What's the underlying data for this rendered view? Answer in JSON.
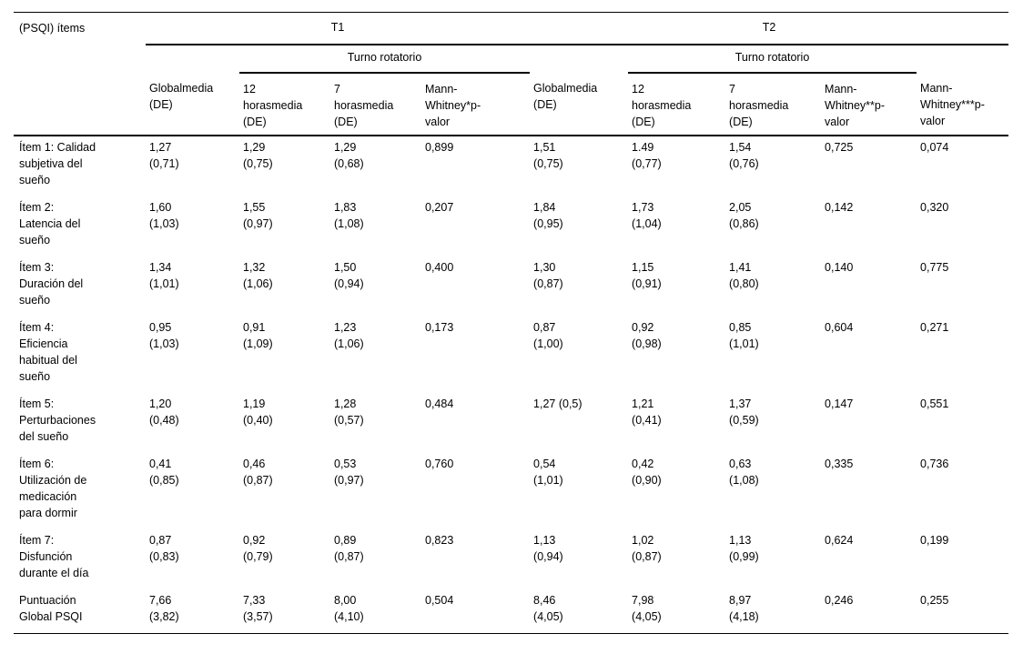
{
  "colors": {
    "background": "#ffffff",
    "text": "#000000",
    "rules": "#000000"
  },
  "table": {
    "corner_header": "(PSQI) ítems",
    "group_headers": [
      "T1",
      "T2"
    ],
    "turno_labels": [
      "Turno rotatorio",
      "Turno rotatorio"
    ],
    "columns": [
      "Globalmedia\n(DE)",
      "12\nhorasmedia\n(DE)",
      "7\nhorasmedia\n(DE)",
      "Mann-\nWhitney*p-\nvalor",
      "Globalmedia\n(DE)",
      "12\nhorasmedia\n(DE)",
      "7\nhorasmedia\n(DE)",
      "Mann-\nWhitney**p-\nvalor",
      "Mann-\nWhitney***p-\nvalor"
    ],
    "rows": [
      {
        "item": "Ítem 1: Calidad\nsubjetiva del\nsueño",
        "cells": [
          "1,27\n(0,71)",
          "1,29\n(0,75)",
          "1,29\n(0,68)",
          "0,899",
          "1,51\n(0,75)",
          "1.49\n(0,77)",
          "1,54\n(0,76)",
          "0,725",
          "0,074"
        ]
      },
      {
        "item": "Ítem 2:\nLatencia del\nsueño",
        "cells": [
          "1,60\n(1,03)",
          "1,55\n(0,97)",
          "1,83\n(1,08)",
          "0,207",
          "1,84\n(0,95)",
          "1,73\n(1,04)",
          "2,05\n(0,86)",
          "0,142",
          "0,320"
        ]
      },
      {
        "item": "Ítem 3:\nDuración del\nsueño",
        "cells": [
          "1,34\n(1,01)",
          "1,32\n(1,06)",
          "1,50\n(0,94)",
          "0,400",
          "1,30\n(0,87)",
          "1,15\n(0,91)",
          "1,41\n(0,80)",
          "0,140",
          "0,775"
        ]
      },
      {
        "item": "Ítem 4:\nEficiencia\nhabitual del\nsueño",
        "cells": [
          "0,95\n(1,03)",
          "0,91\n(1,09)",
          "1,23\n(1,06)",
          "0,173",
          "0,87\n(1,00)",
          "0,92\n(0,98)",
          "0,85\n(1,01)",
          "0,604",
          "0,271"
        ]
      },
      {
        "item": "Ítem 5:\nPerturbaciones\ndel sueño",
        "cells": [
          "1,20\n(0,48)",
          "1,19\n(0,40)",
          "1,28\n(0,57)",
          "0,484",
          "1,27 (0,5)",
          "1,21\n(0,41)",
          "1,37\n(0,59)",
          "0,147",
          "0,551"
        ]
      },
      {
        "item": "Ítem 6:\nUtilización de\nmedicación\npara dormir",
        "cells": [
          "0,41\n(0,85)",
          "0,46\n(0,87)",
          "0,53\n(0,97)",
          "0,760",
          "0,54\n(1,01)",
          "0,42\n(0,90)",
          "0,63\n(1,08)",
          "0,335",
          "0,736"
        ]
      },
      {
        "item": "Ítem 7:\nDisfunción\ndurante el día",
        "cells": [
          "0,87\n(0,83)",
          "0,92\n(0,79)",
          "0,89\n(0,87)",
          "0,823",
          "1,13\n(0,94)",
          "1,02\n(0,87)",
          "1,13\n(0,99)",
          "0,624",
          "0,199"
        ]
      },
      {
        "item": "Puntuación\nGlobal PSQI",
        "cells": [
          "7,66\n(3,82)",
          "7,33\n(3,57)",
          "8,00\n(4,10)",
          "0,504",
          "8,46\n(4,05)",
          "7,98\n(4,05)",
          "8,97\n(4,18)",
          "0,246",
          "0,255"
        ]
      }
    ]
  }
}
